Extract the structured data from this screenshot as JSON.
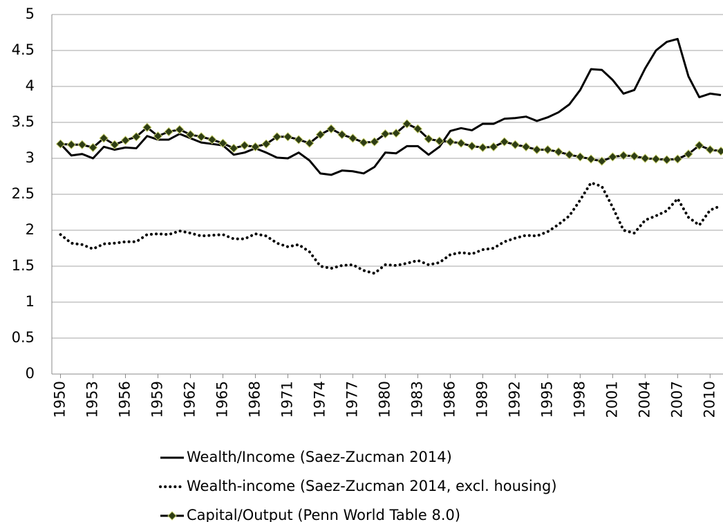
{
  "chart_data": {
    "type": "line",
    "x": [
      1950,
      1951,
      1952,
      1953,
      1954,
      1955,
      1956,
      1957,
      1958,
      1959,
      1960,
      1961,
      1962,
      1963,
      1964,
      1965,
      1966,
      1967,
      1968,
      1969,
      1970,
      1971,
      1972,
      1973,
      1974,
      1975,
      1976,
      1977,
      1978,
      1979,
      1980,
      1981,
      1982,
      1983,
      1984,
      1985,
      1986,
      1987,
      1988,
      1989,
      1990,
      1991,
      1992,
      1993,
      1994,
      1995,
      1996,
      1997,
      1998,
      1999,
      2000,
      2001,
      2002,
      2003,
      2004,
      2005,
      2006,
      2007,
      2008,
      2009,
      2010,
      2011
    ],
    "xlim": [
      1949.2,
      2011
    ],
    "xticks": [
      1950,
      1953,
      1956,
      1959,
      1962,
      1965,
      1968,
      1971,
      1974,
      1977,
      1980,
      1983,
      1986,
      1989,
      1992,
      1995,
      1998,
      2001,
      2004,
      2007,
      2010
    ],
    "ylim": [
      0,
      5
    ],
    "yticks": [
      0,
      0.5,
      1,
      1.5,
      2,
      2.5,
      3,
      3.5,
      4,
      4.5,
      5
    ],
    "grid": true,
    "series": [
      {
        "name": "Wealth/Income (Saez-Zucman 2014)",
        "color": "#000000",
        "line_style": "solid",
        "values": [
          3.2,
          3.04,
          3.06,
          3.0,
          3.16,
          3.12,
          3.15,
          3.14,
          3.31,
          3.26,
          3.26,
          3.34,
          3.28,
          3.22,
          3.2,
          3.18,
          3.05,
          3.08,
          3.14,
          3.08,
          3.01,
          3.0,
          3.08,
          2.97,
          2.79,
          2.77,
          2.83,
          2.82,
          2.79,
          2.88,
          3.08,
          3.07,
          3.17,
          3.17,
          3.05,
          3.16,
          3.38,
          3.42,
          3.39,
          3.48,
          3.48,
          3.55,
          3.56,
          3.58,
          3.52,
          3.57,
          3.64,
          3.75,
          3.95,
          4.24,
          4.23,
          4.09,
          3.9,
          3.95,
          4.25,
          4.5,
          4.62,
          4.66,
          4.14,
          3.85,
          3.9,
          3.88
        ]
      },
      {
        "name": "Wealth-income (Saez-Zucman 2014, excl. housing)",
        "color": "#000000",
        "line_style": "dotted",
        "values": [
          1.94,
          1.82,
          1.8,
          1.74,
          1.81,
          1.82,
          1.84,
          1.84,
          1.94,
          1.95,
          1.94,
          1.99,
          1.96,
          1.92,
          1.93,
          1.94,
          1.88,
          1.88,
          1.95,
          1.92,
          1.82,
          1.77,
          1.8,
          1.7,
          1.5,
          1.47,
          1.51,
          1.52,
          1.44,
          1.4,
          1.52,
          1.51,
          1.54,
          1.58,
          1.52,
          1.55,
          1.66,
          1.69,
          1.67,
          1.73,
          1.75,
          1.84,
          1.89,
          1.93,
          1.92,
          1.98,
          2.08,
          2.2,
          2.42,
          2.66,
          2.61,
          2.32,
          2.0,
          1.96,
          2.14,
          2.2,
          2.27,
          2.44,
          2.18,
          2.07,
          2.28,
          2.34
        ]
      },
      {
        "name": "Capital/Output (Penn World Table 8.0)",
        "color": "#000000",
        "line_style": "solid",
        "marker": "diamond",
        "marker_color": "#2e3d14",
        "values": [
          3.2,
          3.19,
          3.19,
          3.15,
          3.28,
          3.19,
          3.25,
          3.3,
          3.43,
          3.31,
          3.37,
          3.4,
          3.33,
          3.3,
          3.26,
          3.21,
          3.14,
          3.18,
          3.16,
          3.2,
          3.3,
          3.3,
          3.26,
          3.21,
          3.33,
          3.41,
          3.33,
          3.28,
          3.22,
          3.23,
          3.34,
          3.35,
          3.48,
          3.41,
          3.27,
          3.24,
          3.23,
          3.21,
          3.17,
          3.15,
          3.16,
          3.23,
          3.19,
          3.16,
          3.12,
          3.12,
          3.09,
          3.05,
          3.02,
          2.99,
          2.96,
          3.02,
          3.04,
          3.03,
          3.0,
          2.99,
          2.98,
          2.99,
          3.06,
          3.18,
          3.12,
          3.1
        ]
      }
    ]
  }
}
